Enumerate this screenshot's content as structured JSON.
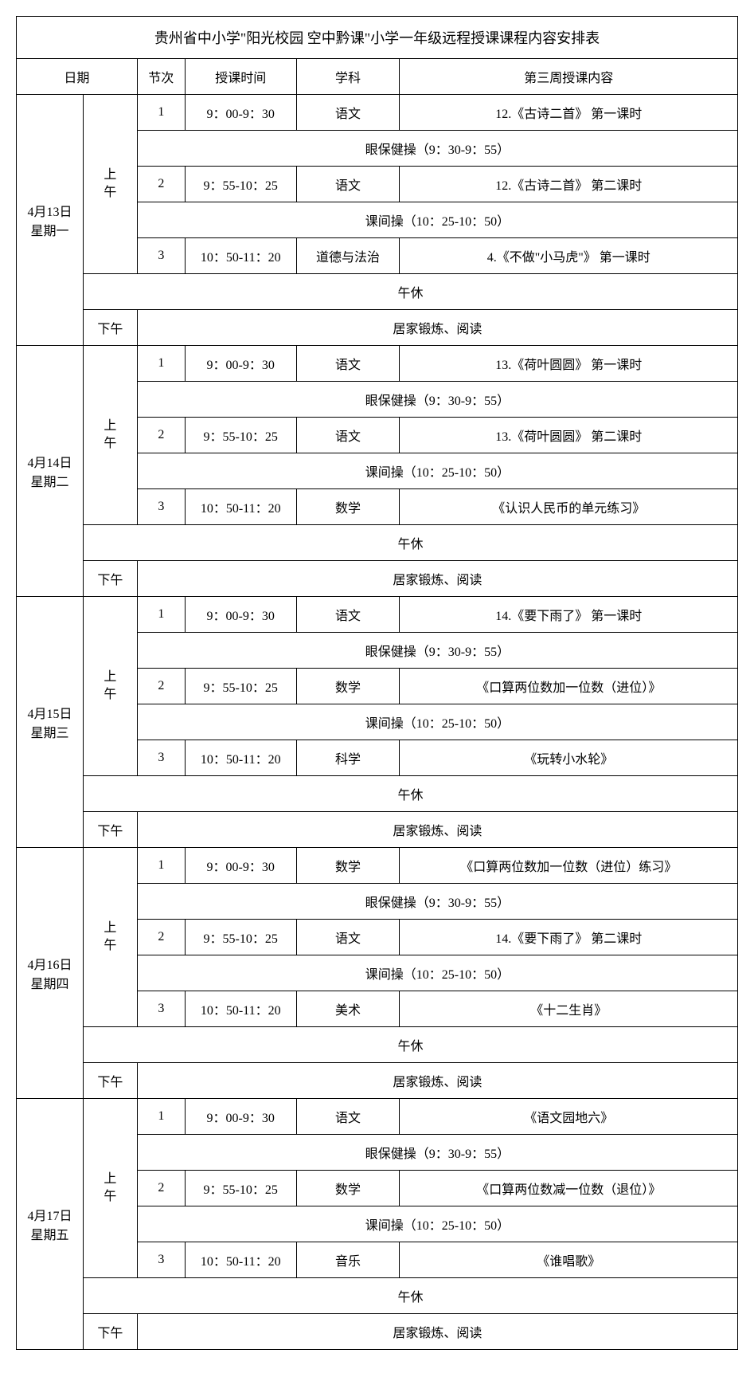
{
  "title": "贵州省中小学\"阳光校园 空中黔课\"小学一年级远程授课课程内容安排表",
  "headers": {
    "date": "日期",
    "period": "节次",
    "time": "授课时间",
    "subject": "学科",
    "content": "第三周授课内容"
  },
  "labels": {
    "morning": "上午",
    "afternoon": "下午",
    "eye_break": "眼保健操（9：30-9：55）",
    "class_break": "课间操（10：25-10：50）",
    "noon_rest": "午休",
    "home_activity": "居家锻炼、阅读"
  },
  "time_slots": {
    "p1": "9：00-9：30",
    "p2": "9：55-10：25",
    "p3": "10：50-11：20"
  },
  "period_numbers": {
    "n1": "1",
    "n2": "2",
    "n3": "3"
  },
  "days": [
    {
      "date": "4月13日",
      "weekday": "星期一",
      "morning": [
        {
          "subject": "语文",
          "content": "12.《古诗二首》 第一课时"
        },
        {
          "subject": "语文",
          "content": "12.《古诗二首》 第二课时"
        },
        {
          "subject": "道德与法治",
          "content": "4.《不做\"小马虎\"》 第一课时"
        }
      ]
    },
    {
      "date": "4月14日",
      "weekday": "星期二",
      "morning": [
        {
          "subject": "语文",
          "content": "13.《荷叶圆圆》 第一课时"
        },
        {
          "subject": "语文",
          "content": "13.《荷叶圆圆》 第二课时"
        },
        {
          "subject": "数学",
          "content": "《认识人民币的单元练习》"
        }
      ]
    },
    {
      "date": "4月15日",
      "weekday": "星期三",
      "morning": [
        {
          "subject": "语文",
          "content": "14.《要下雨了》 第一课时"
        },
        {
          "subject": "数学",
          "content": "《口算两位数加一位数（进位）》"
        },
        {
          "subject": "科学",
          "content": "《玩转小水轮》"
        }
      ]
    },
    {
      "date": "4月16日",
      "weekday": "星期四",
      "morning": [
        {
          "subject": "数学",
          "content": "《口算两位数加一位数（进位）练习》"
        },
        {
          "subject": "语文",
          "content": "14.《要下雨了》 第二课时"
        },
        {
          "subject": "美术",
          "content": "《十二生肖》"
        }
      ]
    },
    {
      "date": "4月17日",
      "weekday": "星期五",
      "morning": [
        {
          "subject": "语文",
          "content": "《语文园地六》"
        },
        {
          "subject": "数学",
          "content": "《口算两位数减一位数（退位）》"
        },
        {
          "subject": "音乐",
          "content": "《谁唱歌》"
        }
      ]
    }
  ],
  "col_widths": {
    "date": 84,
    "session": 68,
    "period": 60,
    "time": 140,
    "subject": 130,
    "content": 425
  }
}
